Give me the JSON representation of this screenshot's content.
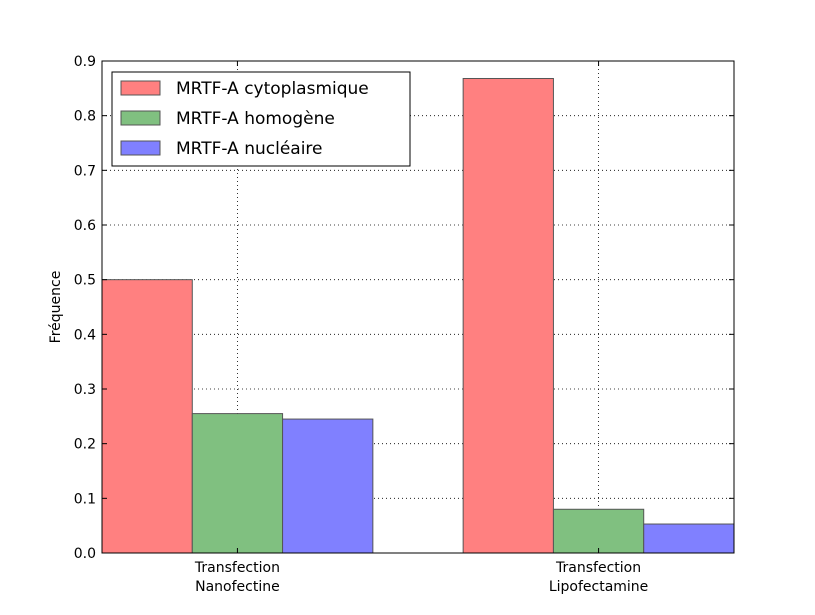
{
  "chart_data": {
    "type": "bar",
    "title": "",
    "xlabel": "",
    "ylabel": "Fréquence",
    "ylim": [
      0,
      0.9
    ],
    "yticks": [
      "0.0",
      "0.1",
      "0.2",
      "0.3",
      "0.4",
      "0.5",
      "0.6",
      "0.7",
      "0.8",
      "0.9"
    ],
    "categories": [
      [
        "Transfection",
        "Nanofectine"
      ],
      [
        "Transfection",
        "Lipofectamine"
      ]
    ],
    "series": [
      {
        "name": "MRTF-A cytoplasmique",
        "color": "#ff8080",
        "values": [
          0.5,
          0.868
        ]
      },
      {
        "name": "MRTF-A homogène",
        "color": "#80c080",
        "values": [
          0.255,
          0.08
        ]
      },
      {
        "name": "MRTF-A nucléaire",
        "color": "#8080ff",
        "values": [
          0.245,
          0.053
        ]
      }
    ],
    "grid": true,
    "legend_position": "top-left"
  }
}
